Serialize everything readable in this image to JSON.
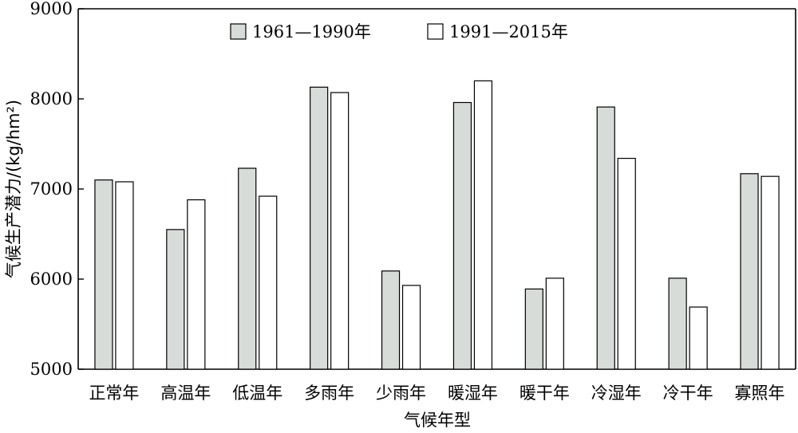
{
  "chart_data": {
    "type": "bar",
    "title": "",
    "xlabel": "气候年型",
    "ylabel": "气候生产潜力/(kg/hm²)",
    "ylim": [
      5000,
      9000
    ],
    "yticks": [
      5000,
      6000,
      7000,
      8000,
      9000
    ],
    "grid": false,
    "legend_position": "top",
    "categories": [
      "正常年",
      "高温年",
      "低温年",
      "多雨年",
      "少雨年",
      "暖湿年",
      "暖干年",
      "冷湿年",
      "冷干年",
      "寡照年"
    ],
    "series": [
      {
        "name": "1961—1990年",
        "color": "#d8dcd9",
        "values": [
          7100,
          6550,
          7230,
          8130,
          6090,
          7960,
          5890,
          7910,
          6010,
          7170
        ]
      },
      {
        "name": "1991—2015年",
        "color": "#ffffff",
        "values": [
          7080,
          6880,
          6920,
          8070,
          5930,
          8200,
          6010,
          7340,
          5690,
          7140
        ]
      }
    ]
  }
}
